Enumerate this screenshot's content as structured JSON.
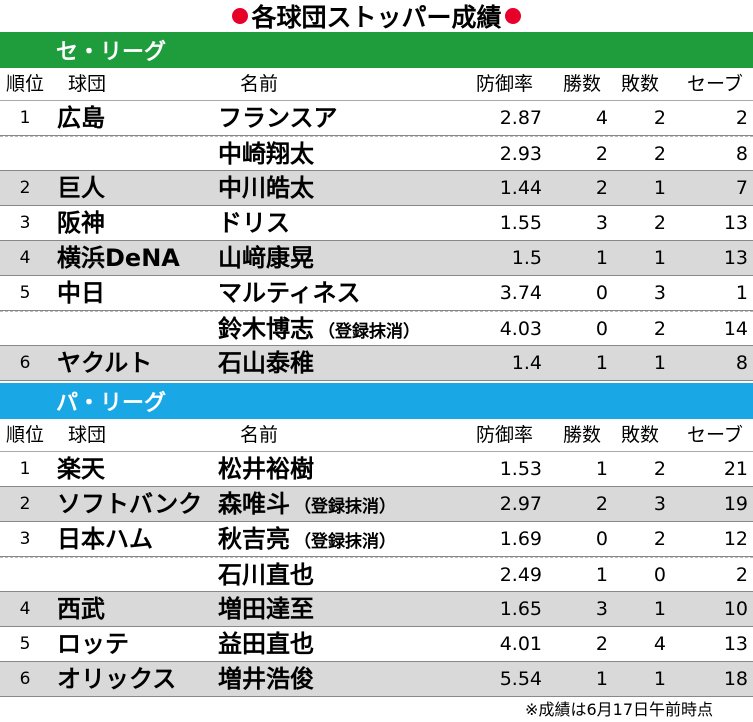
{
  "title": "各球団ストッパー成績",
  "colors": {
    "central_league": "#1f9d3c",
    "pacific_league": "#1aa7e6",
    "title_dot": "#e8002a",
    "row_shade": "#d9d9d9"
  },
  "headers": {
    "rank": "順位",
    "team": "球団",
    "name": "名前",
    "era": "防御率",
    "wins": "勝数",
    "losses": "敗数",
    "saves": "セーブ"
  },
  "central": {
    "label": "セ・リーグ",
    "rows": [
      {
        "rank": "1",
        "team": "広島",
        "name": "フランスア",
        "note": "",
        "era": "2.87",
        "wins": "4",
        "losses": "2",
        "saves": "2"
      },
      {
        "rank": "",
        "team": "",
        "name": "中崎翔太",
        "note": "",
        "era": "2.93",
        "wins": "2",
        "losses": "2",
        "saves": "8"
      },
      {
        "rank": "2",
        "team": "巨人",
        "name": "中川皓太",
        "note": "",
        "era": "1.44",
        "wins": "2",
        "losses": "1",
        "saves": "7"
      },
      {
        "rank": "3",
        "team": "阪神",
        "name": "ドリス",
        "note": "",
        "era": "1.55",
        "wins": "3",
        "losses": "2",
        "saves": "13"
      },
      {
        "rank": "4",
        "team": "横浜DeNA",
        "name": "山﨑康晃",
        "note": "",
        "era": "1.5",
        "wins": "1",
        "losses": "1",
        "saves": "13"
      },
      {
        "rank": "5",
        "team": "中日",
        "name": "マルティネス",
        "note": "",
        "era": "3.74",
        "wins": "0",
        "losses": "3",
        "saves": "1"
      },
      {
        "rank": "",
        "team": "",
        "name": "鈴木博志",
        "note": "（登録抹消）",
        "era": "4.03",
        "wins": "0",
        "losses": "2",
        "saves": "14"
      },
      {
        "rank": "6",
        "team": "ヤクルト",
        "name": "石山泰稚",
        "note": "",
        "era": "1.4",
        "wins": "1",
        "losses": "1",
        "saves": "8"
      }
    ]
  },
  "pacific": {
    "label": "パ・リーグ",
    "rows": [
      {
        "rank": "1",
        "team": "楽天",
        "name": "松井裕樹",
        "note": "",
        "era": "1.53",
        "wins": "1",
        "losses": "2",
        "saves": "21"
      },
      {
        "rank": "2",
        "team": "ソフトバンク",
        "name": "森唯斗",
        "note": "（登録抹消）",
        "era": "2.97",
        "wins": "2",
        "losses": "3",
        "saves": "19"
      },
      {
        "rank": "3",
        "team": "日本ハム",
        "name": "秋吉亮",
        "note": "（登録抹消）",
        "era": "1.69",
        "wins": "0",
        "losses": "2",
        "saves": "12"
      },
      {
        "rank": "",
        "team": "",
        "name": "石川直也",
        "note": "",
        "era": "2.49",
        "wins": "1",
        "losses": "0",
        "saves": "2"
      },
      {
        "rank": "4",
        "team": "西武",
        "name": "増田達至",
        "note": "",
        "era": "1.65",
        "wins": "3",
        "losses": "1",
        "saves": "10"
      },
      {
        "rank": "5",
        "team": "ロッテ",
        "name": "益田直也",
        "note": "",
        "era": "4.01",
        "wins": "2",
        "losses": "4",
        "saves": "13"
      },
      {
        "rank": "6",
        "team": "オリックス",
        "name": "増井浩俊",
        "note": "",
        "era": "5.54",
        "wins": "1",
        "losses": "1",
        "saves": "18"
      }
    ]
  },
  "footnote": "※成績は6月17日午前時点"
}
